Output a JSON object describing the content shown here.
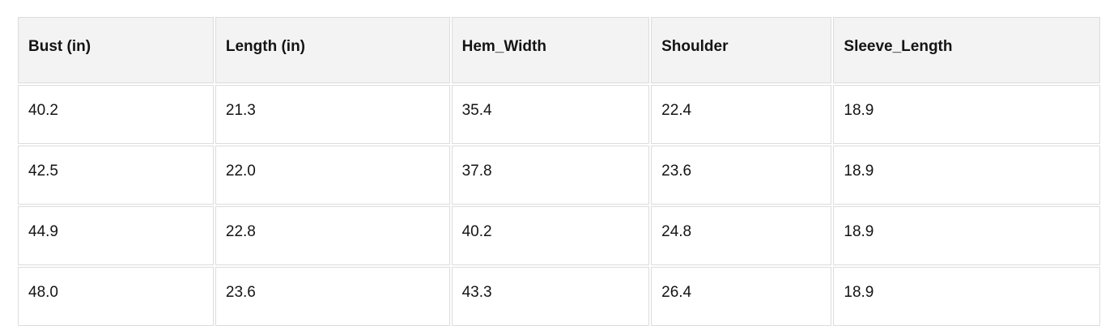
{
  "table": {
    "columns": [
      "Bust (in)",
      "Length (in)",
      "Hem_Width",
      "Shoulder",
      "Sleeve_Length"
    ],
    "rows": [
      [
        "40.2",
        "21.3",
        "35.4",
        "22.4",
        "18.9"
      ],
      [
        "42.5",
        "22.0",
        "37.8",
        "23.6",
        "18.9"
      ],
      [
        "44.9",
        "22.8",
        "40.2",
        "24.8",
        "18.9"
      ],
      [
        "48.0",
        "23.6",
        "43.3",
        "26.4",
        "18.9"
      ]
    ]
  },
  "colors": {
    "header_bg": "#f3f3f3",
    "cell_bg": "#ffffff",
    "border": "#dcdcdc",
    "text": "#141414",
    "page_bg": "#ffffff"
  },
  "chart_data": {
    "type": "table",
    "title": "",
    "columns": [
      "Bust (in)",
      "Length (in)",
      "Hem_Width",
      "Shoulder",
      "Sleeve_Length"
    ],
    "rows": [
      [
        40.2,
        21.3,
        35.4,
        22.4,
        18.9
      ],
      [
        42.5,
        22.0,
        37.8,
        23.6,
        18.9
      ],
      [
        44.9,
        22.8,
        40.2,
        24.8,
        18.9
      ],
      [
        48.0,
        23.6,
        43.3,
        26.4,
        18.9
      ]
    ]
  }
}
